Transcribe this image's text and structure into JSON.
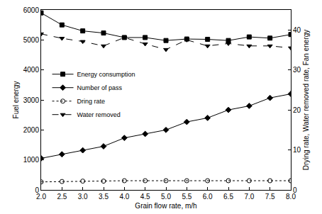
{
  "chart_data": {
    "type": "line",
    "x_label": "Grain flow rate, m/h",
    "y_label": "Fuel energy",
    "y2_label": "Drying rate, Water removed rate, Fan energy",
    "x": [
      2.0,
      2.5,
      3.0,
      3.5,
      4.0,
      4.5,
      5.0,
      5.5,
      6.0,
      6.5,
      7.0,
      7.5,
      8.0
    ],
    "xlim": [
      2.0,
      8.0
    ],
    "xticks": [
      {
        "value": 2.0,
        "label": "2.0"
      },
      2.5,
      {
        "value": 3.0,
        "label": "3.0"
      },
      3.5,
      {
        "value": 4.0,
        "label": "4.0"
      },
      4.5,
      {
        "value": 5.0,
        "label": "5.0"
      },
      5.5,
      {
        "value": 6.0,
        "label": "6.0"
      },
      6.5,
      {
        "value": 7.0,
        "label": "7.0"
      },
      7.5,
      {
        "value": 8.0,
        "label": "8.0"
      }
    ],
    "ylim": [
      0,
      6000
    ],
    "yticks": [
      0,
      1000,
      2000,
      3000,
      4000,
      5000,
      6000
    ],
    "y2lim": [
      0,
      45
    ],
    "y2ticks": [
      0,
      10,
      20,
      30,
      40
    ],
    "grid": false,
    "legend": "left",
    "series": [
      {
        "name": "Energy consumption",
        "color": "#000000",
        "marker": "square",
        "line_style": "solid",
        "values": [
          5900,
          5500,
          5300,
          5230,
          5080,
          5080,
          4980,
          5030,
          5020,
          4980,
          5100,
          5060,
          5180
        ]
      },
      {
        "name": "Number of pass",
        "color": "#000000",
        "marker": "diamond",
        "line_style": "solid",
        "axis": "y2",
        "values": [
          7.9,
          8.9,
          9.9,
          10.9,
          13.0,
          14.0,
          15.0,
          17.0,
          18.0,
          20.0,
          21.0,
          23.0,
          24.0
        ]
      },
      {
        "name": "Dring rate",
        "color": "#000000",
        "marker": "circle-open",
        "line_style": "dotted",
        "axis": "y2",
        "values": [
          2.0,
          2.1,
          2.2,
          2.2,
          2.3,
          2.3,
          2.3,
          2.3,
          2.3,
          2.3,
          2.3,
          2.3,
          2.3
        ]
      },
      {
        "name": "Water removed",
        "color": "#000000",
        "marker": "triangle-down",
        "line_style": "dashed",
        "axis": "y2",
        "values": [
          39.0,
          37.9,
          37.1,
          36.0,
          38.1,
          36.5,
          35.1,
          37.5,
          36.0,
          36.6,
          36.0,
          36.0,
          35.5
        ]
      }
    ]
  }
}
